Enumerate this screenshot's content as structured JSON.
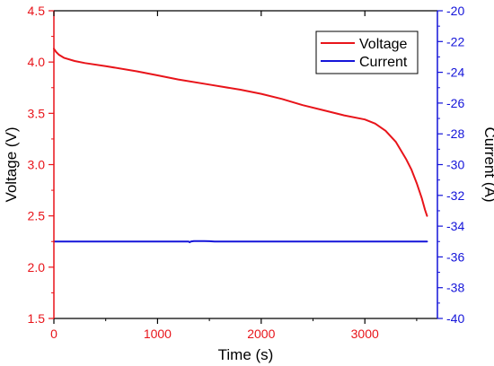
{
  "chart_data": {
    "type": "line",
    "xlabel": "Time (s)",
    "ylabel_left": "Voltage (V)",
    "ylabel_right": "Current (A)",
    "xlim": [
      0,
      3700
    ],
    "ylim_left": [
      1.5,
      4.5
    ],
    "ylim_right": [
      -40,
      -20
    ],
    "x_ticks": [
      "0",
      "1000",
      "2000",
      "3000"
    ],
    "y_left_ticks": [
      "1.5",
      "2.0",
      "2.5",
      "3.0",
      "3.5",
      "4.0",
      "4.5"
    ],
    "y_right_ticks": [
      "-20",
      "-22",
      "-24",
      "-26",
      "-28",
      "-30",
      "-32",
      "-34",
      "-36",
      "-38",
      "-40"
    ],
    "grid": false,
    "legend_placement": "top-right",
    "colors": {
      "left_axis": "#e8141a",
      "right_axis": "#1414d9",
      "axes": "#000000"
    },
    "series": [
      {
        "name": "Voltage",
        "axis": "left",
        "color": "#e8141a",
        "x": [
          0,
          20,
          50,
          100,
          200,
          300,
          500,
          800,
          1000,
          1200,
          1500,
          1800,
          2000,
          2200,
          2400,
          2600,
          2800,
          3000,
          3100,
          3200,
          3300,
          3400,
          3450,
          3500,
          3550,
          3580,
          3600
        ],
        "y": [
          4.13,
          4.1,
          4.07,
          4.04,
          4.01,
          3.99,
          3.96,
          3.91,
          3.87,
          3.83,
          3.78,
          3.73,
          3.69,
          3.64,
          3.58,
          3.53,
          3.48,
          3.44,
          3.4,
          3.33,
          3.22,
          3.05,
          2.95,
          2.82,
          2.67,
          2.56,
          2.5
        ]
      },
      {
        "name": "Current",
        "axis": "right",
        "color": "#1414d9",
        "x": [
          0,
          1300,
          1310,
          1320,
          1350,
          1450,
          1500,
          1550,
          3600
        ],
        "y": [
          -35.0,
          -35.0,
          -35.05,
          -35.0,
          -34.97,
          -34.97,
          -34.98,
          -35.0,
          -35.0
        ]
      }
    ]
  }
}
